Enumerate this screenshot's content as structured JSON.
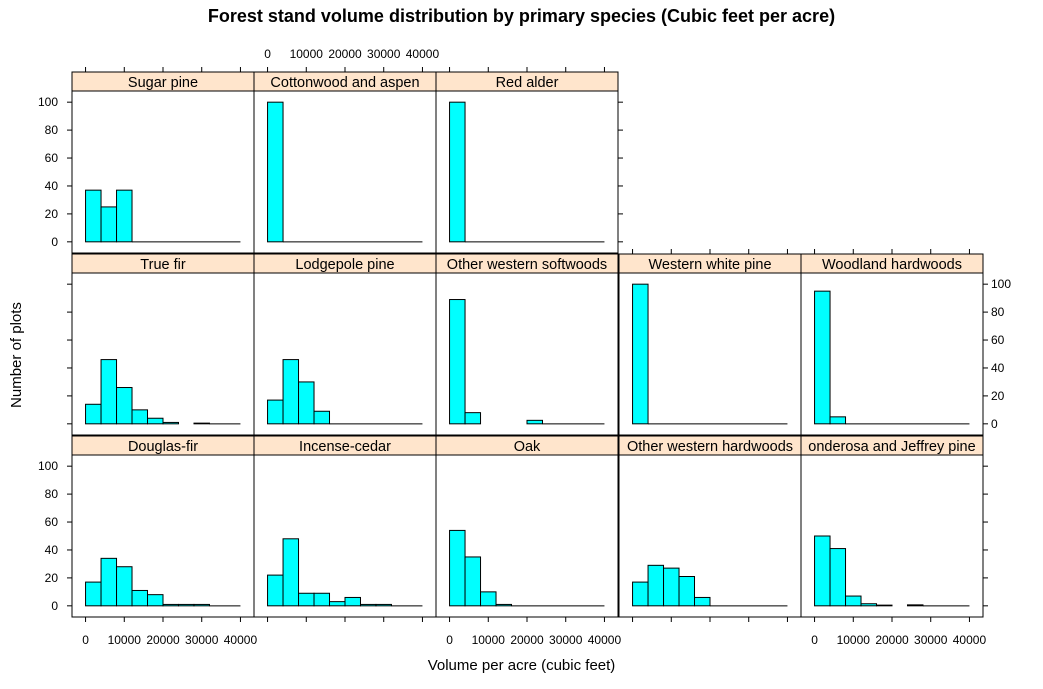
{
  "chart_data": {
    "type": "bar",
    "title": "Forest stand volume distribution by primary species (Cubic feet per acre)",
    "xlabel": "Volume per acre (cubic feet)",
    "ylabel": "Number of plots",
    "xlim": [
      -3500,
      43500
    ],
    "ylim": [
      -8,
      108
    ],
    "bin_width": 4000,
    "x_ticks": [
      0,
      10000,
      20000,
      30000,
      40000
    ],
    "x_tick_labels": [
      "0",
      "10000",
      "20000",
      "30000",
      "40000"
    ],
    "y_ticks": [
      0,
      20,
      40,
      60,
      80,
      100
    ],
    "y_tick_labels": [
      "0",
      "20",
      "40",
      "60",
      "80",
      "100"
    ],
    "colors": {
      "bar_fill": "#00ffff",
      "bar_stroke": "#000000",
      "strip_fill": "#ffe5cc"
    },
    "panels": [
      {
        "name": "Sugar pine",
        "bin_start": 0,
        "values": [
          37,
          25,
          37
        ]
      },
      {
        "name": "Cottonwood and aspen",
        "bin_start": 0,
        "values": [
          100
        ]
      },
      {
        "name": "Red alder",
        "bin_start": 0,
        "values": [
          100
        ]
      },
      {
        "name": "True fir",
        "bin_start": 0,
        "values": [
          14,
          46,
          26,
          10,
          4,
          1,
          0,
          0.5
        ]
      },
      {
        "name": "Lodgepole pine",
        "bin_start": 0,
        "values": [
          17,
          46,
          30,
          9
        ]
      },
      {
        "name": "Other western softwoods",
        "bin_start": 0,
        "values": [
          89,
          8,
          0,
          0,
          0,
          2.5
        ]
      },
      {
        "name": "Western white pine",
        "bin_start": 0,
        "values": [
          100
        ]
      },
      {
        "name": "Woodland hardwoods",
        "bin_start": 0,
        "values": [
          95,
          5
        ]
      },
      {
        "name": "Douglas-fir",
        "bin_start": 0,
        "values": [
          17,
          34,
          28,
          11,
          8,
          1,
          1,
          1
        ]
      },
      {
        "name": "Incense-cedar",
        "bin_start": 0,
        "values": [
          22,
          48,
          9,
          9,
          3,
          6,
          1,
          1
        ]
      },
      {
        "name": "Oak",
        "bin_start": 0,
        "values": [
          54,
          35,
          10,
          1
        ]
      },
      {
        "name": "Other western hardwoods",
        "bin_start": 0,
        "values": [
          17,
          29,
          27,
          21,
          6
        ]
      },
      {
        "name": "onderosa and Jeffrey pine",
        "bin_start": 0,
        "values": [
          50,
          41,
          7,
          1.5,
          0.5,
          0,
          0.7
        ]
      }
    ]
  }
}
